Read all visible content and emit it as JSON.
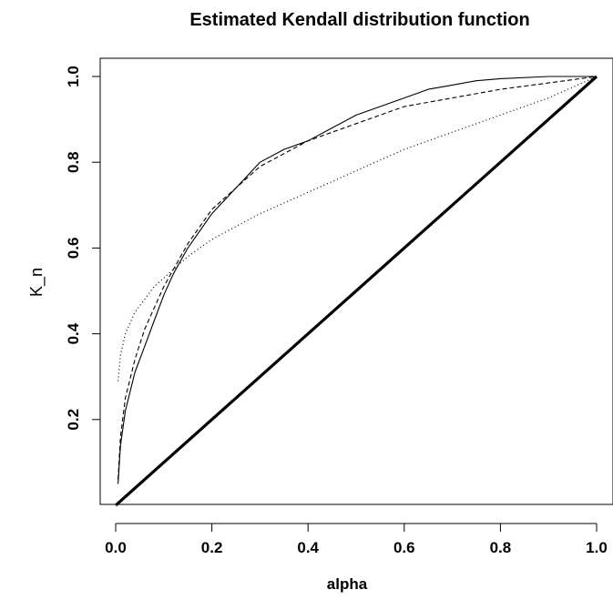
{
  "chart_data": {
    "type": "line",
    "title": "Estimated Kendall distribution function",
    "xlabel": "alpha",
    "ylabel": "K_n",
    "xlim": [
      0.0,
      1.0
    ],
    "ylim": [
      0.0,
      1.0
    ],
    "x_ticks": [
      "0.0",
      "0.2",
      "0.4",
      "0.6",
      "0.8",
      "1.0"
    ],
    "y_ticks": [
      "0.2",
      "0.4",
      "0.6",
      "0.8",
      "1.0"
    ],
    "grid": false,
    "legend": "none",
    "series": [
      {
        "style": "solid",
        "points": [
          [
            0.005,
            0.05
          ],
          [
            0.01,
            0.14
          ],
          [
            0.02,
            0.22
          ],
          [
            0.04,
            0.31
          ],
          [
            0.06,
            0.37
          ],
          [
            0.08,
            0.43
          ],
          [
            0.1,
            0.49
          ],
          [
            0.12,
            0.54
          ],
          [
            0.15,
            0.6
          ],
          [
            0.2,
            0.68
          ],
          [
            0.25,
            0.74
          ],
          [
            0.3,
            0.8
          ],
          [
            0.35,
            0.83
          ],
          [
            0.4,
            0.85
          ],
          [
            0.45,
            0.88
          ],
          [
            0.5,
            0.91
          ],
          [
            0.55,
            0.93
          ],
          [
            0.6,
            0.95
          ],
          [
            0.65,
            0.97
          ],
          [
            0.7,
            0.98
          ],
          [
            0.75,
            0.99
          ],
          [
            0.8,
            0.995
          ],
          [
            0.9,
            1.0
          ],
          [
            1.0,
            1.0
          ]
        ]
      },
      {
        "style": "dashed",
        "points": [
          [
            0.005,
            0.06
          ],
          [
            0.01,
            0.16
          ],
          [
            0.02,
            0.25
          ],
          [
            0.04,
            0.34
          ],
          [
            0.06,
            0.41
          ],
          [
            0.08,
            0.46
          ],
          [
            0.1,
            0.51
          ],
          [
            0.12,
            0.55
          ],
          [
            0.15,
            0.61
          ],
          [
            0.2,
            0.69
          ],
          [
            0.25,
            0.74
          ],
          [
            0.3,
            0.79
          ],
          [
            0.35,
            0.82
          ],
          [
            0.4,
            0.85
          ],
          [
            0.45,
            0.87
          ],
          [
            0.5,
            0.89
          ],
          [
            0.6,
            0.93
          ],
          [
            0.7,
            0.95
          ],
          [
            0.8,
            0.97
          ],
          [
            0.9,
            0.985
          ],
          [
            1.0,
            1.0
          ]
        ]
      },
      {
        "style": "dotted",
        "points": [
          [
            0.005,
            0.29
          ],
          [
            0.01,
            0.35
          ],
          [
            0.02,
            0.4
          ],
          [
            0.04,
            0.45
          ],
          [
            0.06,
            0.48
          ],
          [
            0.08,
            0.51
          ],
          [
            0.1,
            0.53
          ],
          [
            0.12,
            0.55
          ],
          [
            0.15,
            0.58
          ],
          [
            0.2,
            0.62
          ],
          [
            0.25,
            0.65
          ],
          [
            0.3,
            0.68
          ],
          [
            0.4,
            0.73
          ],
          [
            0.5,
            0.78
          ],
          [
            0.6,
            0.83
          ],
          [
            0.7,
            0.87
          ],
          [
            0.8,
            0.91
          ],
          [
            0.9,
            0.95
          ],
          [
            1.0,
            1.0
          ]
        ]
      },
      {
        "style": "thick-solid",
        "points": [
          [
            0.0,
            0.0
          ],
          [
            1.0,
            1.0
          ]
        ]
      }
    ]
  }
}
